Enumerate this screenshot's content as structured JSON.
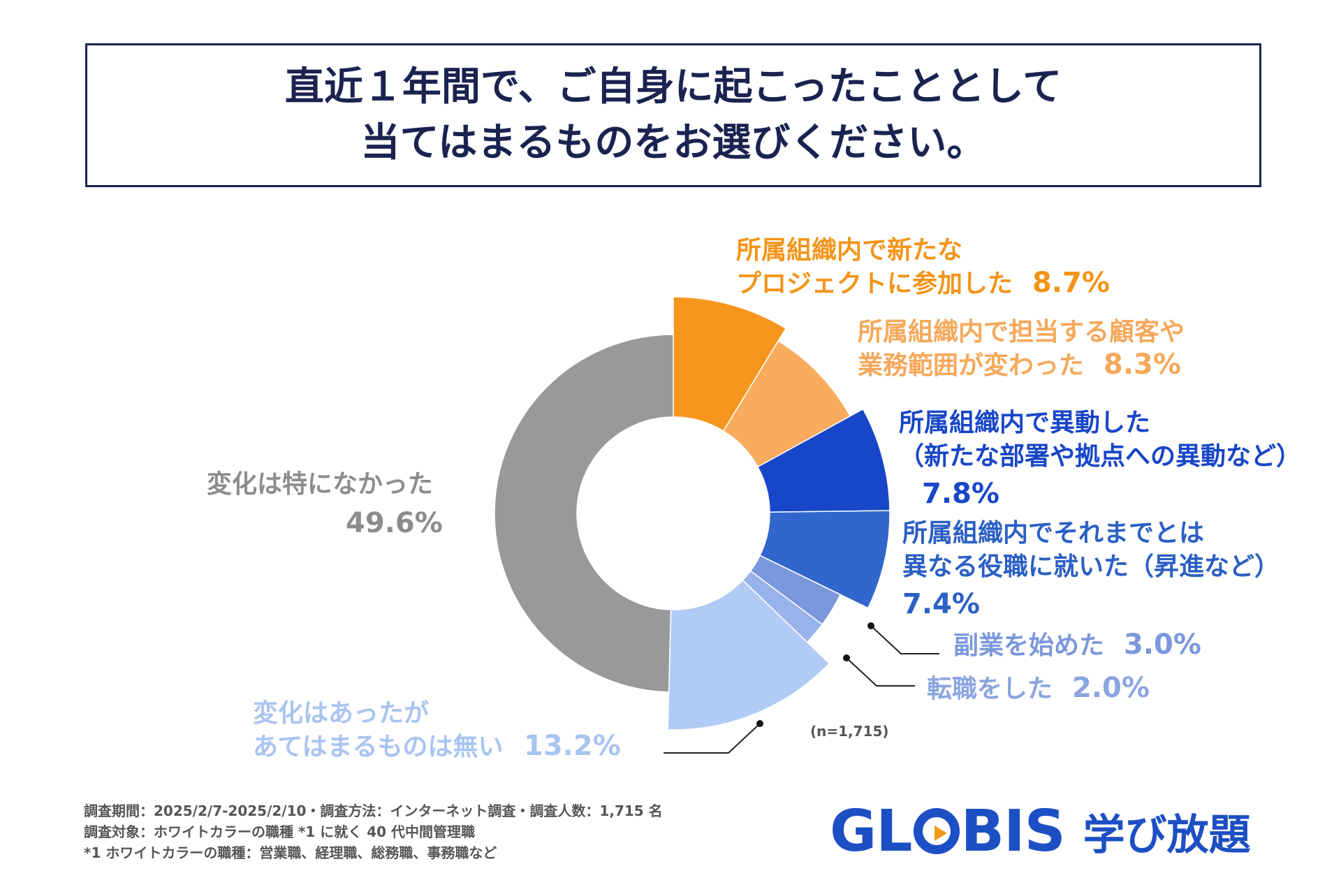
{
  "title": {
    "line1": "直近１年間で、ご自身に起こったこととして",
    "line2": "当てはまるものをお選びください。"
  },
  "chart_data": {
    "type": "pie",
    "sample_note": "(n=1,715)",
    "slices": [
      {
        "lines": [
          "所属組織内で新たな",
          "プロジェクトに参加した"
        ],
        "value_label": "8.7%",
        "value": 8.7,
        "color": "#f7961c",
        "text_color": "#f39418"
      },
      {
        "lines": [
          "所属組織内で担当する顧客や",
          "業務範囲が変わった"
        ],
        "value_label": "8.3%",
        "value": 8.3,
        "color": "#f9ac5d",
        "text_color": "#f5a85a"
      },
      {
        "lines": [
          "所属組織内で異動した",
          "（新たな部署や拠点への異動など）"
        ],
        "value_label": "7.8%",
        "value": 7.8,
        "color": "#1846c8",
        "text_color": "#1846c8"
      },
      {
        "lines": [
          "所属組織内でそれまでとは",
          "異なる役職に就いた（昇進など）"
        ],
        "value_label": "7.4%",
        "value": 7.4,
        "color": "#3166cc",
        "text_color": "#2b5fc4"
      },
      {
        "lines": [
          "副業を始めた"
        ],
        "value_label": "3.0%",
        "value": 3.0,
        "color": "#7b98dc",
        "text_color": "#7b98dc"
      },
      {
        "lines": [
          "転職をした"
        ],
        "value_label": "2.0%",
        "value": 2.0,
        "color": "#98b3ea",
        "text_color": "#8aa5e0"
      },
      {
        "lines": [
          "変化はあったが",
          "あてはまるものは無い"
        ],
        "value_label": "13.2%",
        "value": 13.2,
        "color": "#b0cbf5",
        "text_color": "#a9c4f1"
      },
      {
        "lines": [
          "変化は特になかった"
        ],
        "value_label": "49.6%",
        "value": 49.6,
        "color": "#999999",
        "text_color": "#8c8c8c"
      }
    ]
  },
  "footer": {
    "line1": "調査期間：2025/2/7-2025/2/10・調査方法：インターネット調査・調査人数：1,715 名",
    "line2": "調査対象：ホワイトカラーの職種 *1 に就く 40 代中間管理職",
    "line3": "*1 ホワイトカラーの職種：営業職、経理職、総務職、事務職など"
  },
  "logo": {
    "word_start": "GL",
    "word_end": "BIS",
    "sub": "学び放題"
  }
}
